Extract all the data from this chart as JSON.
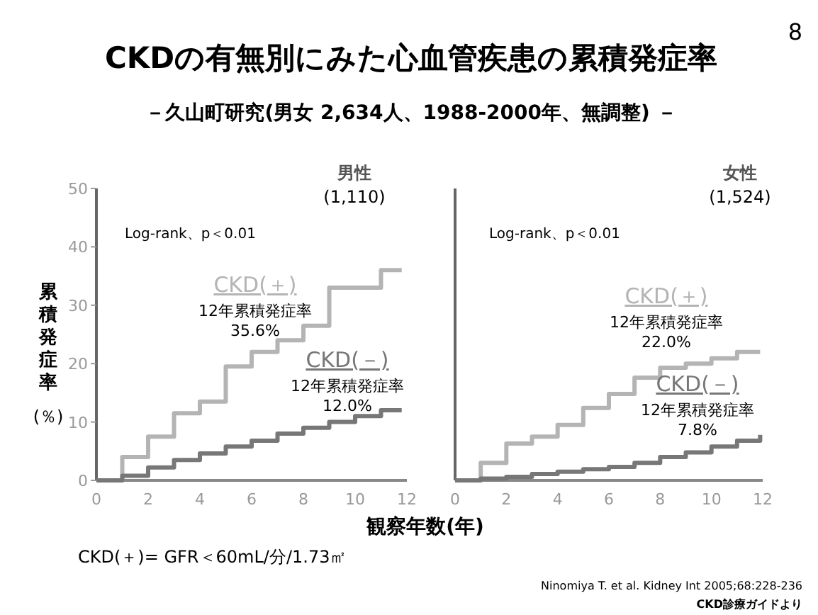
{
  "chart_data": [
    {
      "type": "other",
      "title": "CKDの有無別にみた心血管疾患の累積発症率",
      "subtitle": "－久山町研究(男女 2,634人、1988-2000年、無調整) －",
      "annotations": [
        "8",
        "CKD(＋)= GFR＜60mL/分/1.73㎡",
        "Ninomiya T. et al. Kidney Int 2005;68:228-236",
        "CKD診療ガイドより"
      ]
    },
    {
      "type": "step",
      "title": "男性",
      "subtitle": "(1,110)",
      "xlabel": "観察年数(年)",
      "ylabel": "累積発症率\n(％)",
      "xlim": [
        0,
        12
      ],
      "ylim": [
        0,
        50
      ],
      "xticks": [
        0,
        2,
        4,
        6,
        8,
        10,
        12
      ],
      "yticks": [
        0,
        10,
        20,
        30,
        40,
        50
      ],
      "grid": false,
      "legend": false,
      "annotations": [
        "Log-rank、p＜0.01",
        "12年累積発症率\n35.6%",
        "12年累積発症率\n12.0%"
      ],
      "series": [
        {
          "name": "CKD(＋)",
          "color": "#b4b4b4",
          "x": [
            0,
            1,
            2,
            3,
            4,
            5,
            6,
            7,
            8,
            9,
            11,
            11.8
          ],
          "values": [
            0,
            4,
            7.5,
            11.5,
            13.5,
            19.5,
            22,
            24,
            26.5,
            33,
            36,
            36
          ]
        },
        {
          "name": "CKD(－)",
          "color": "#777777",
          "x": [
            0,
            1,
            2,
            3,
            4,
            5,
            6,
            7,
            8,
            9,
            10,
            11,
            11.8
          ],
          "values": [
            0,
            0.8,
            2.2,
            3.5,
            4.6,
            5.8,
            6.8,
            8,
            9,
            10,
            11,
            12,
            12
          ]
        }
      ]
    },
    {
      "type": "step",
      "title": "女性",
      "subtitle": "(1,524)",
      "xlim": [
        0,
        12
      ],
      "ylim": [
        0,
        50
      ],
      "xticks": [
        0,
        2,
        4,
        6,
        8,
        10,
        12
      ],
      "tick_labels": "x",
      "grid": false,
      "legend": false,
      "annotations": [
        "Log-rank、p＜0.01",
        "12年累積発症率\n22.0%",
        "12年累積発症率\n7.8%"
      ],
      "series": [
        {
          "name": "CKD(＋)",
          "color": "#b4b4b4",
          "x": [
            0,
            1,
            2,
            3,
            4,
            5,
            6,
            7,
            8,
            9,
            10,
            11,
            11.9
          ],
          "values": [
            0,
            3,
            6.3,
            7.5,
            9.5,
            12.4,
            14.8,
            17.6,
            19.3,
            20,
            20.9,
            22,
            22
          ]
        },
        {
          "name": "CKD(－)",
          "color": "#777777",
          "x": [
            0,
            1,
            2,
            3,
            4,
            5,
            6,
            7,
            8,
            9,
            10,
            11,
            11.9
          ],
          "values": [
            0,
            0.3,
            0.6,
            1.1,
            1.5,
            1.9,
            2.3,
            3,
            4,
            4.8,
            5.8,
            6.8,
            7.8
          ]
        }
      ]
    }
  ]
}
